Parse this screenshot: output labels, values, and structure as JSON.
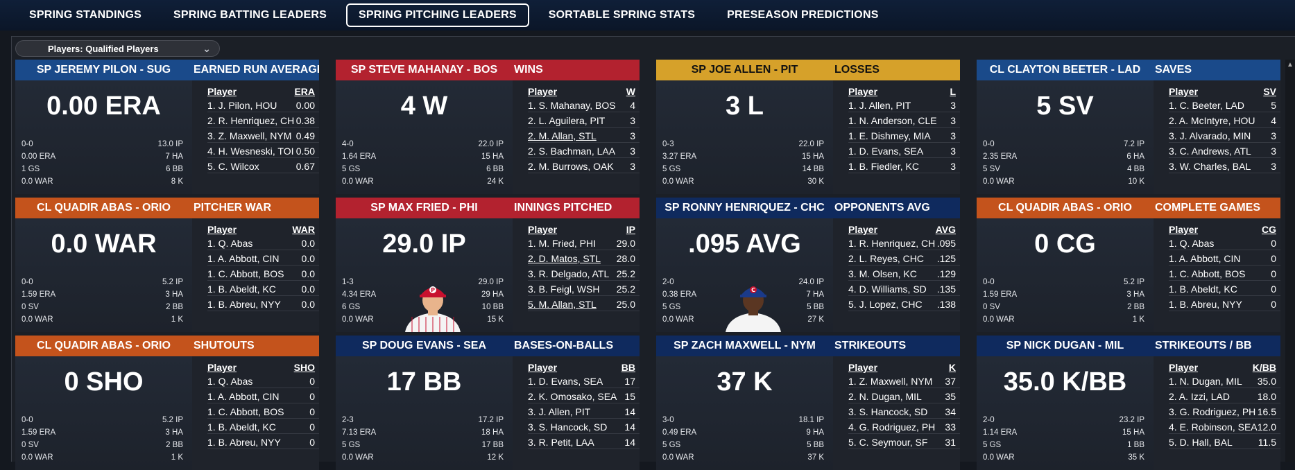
{
  "nav": {
    "tabs": [
      {
        "label": "SPRING STANDINGS",
        "active": false
      },
      {
        "label": "SPRING BATTING LEADERS",
        "active": false
      },
      {
        "label": "SPRING PITCHING LEADERS",
        "active": true
      },
      {
        "label": "SORTABLE SPRING STATS",
        "active": false
      },
      {
        "label": "PRESEASON PREDICTIONS",
        "active": false
      }
    ]
  },
  "filter": {
    "label": "Players: Qualified Players",
    "icon": "chevron-down-icon"
  },
  "colors": {
    "blue": "#1a4a8a",
    "red": "#b3222f",
    "gold": "#d6a12a",
    "orange": "#c4531c",
    "navy": "#0f2a5e"
  },
  "panels": [
    {
      "player": "SP JEREMY PILON - SUG",
      "category": "EARNED RUN AVERAGE",
      "color": "#1a4a8a",
      "big": "0.00 ERA",
      "stats": [
        "0-0",
        "0.00 ERA",
        "1 GS",
        "0.0 WAR"
      ],
      "stats_r": [
        "13.0 IP",
        "7 HA",
        "6 BB",
        "8 K"
      ],
      "col1": "Player",
      "col2": "ERA",
      "rows": [
        [
          "1. J. Pilon, HOU",
          "0.00"
        ],
        [
          "2. R. Henriquez, CH",
          "0.38"
        ],
        [
          "3. Z. Maxwell, NYM",
          "0.49"
        ],
        [
          "4. H. Wesneski, TOI",
          "0.50"
        ],
        [
          "5. C. Wilcox",
          "0.67"
        ]
      ]
    },
    {
      "player": "SP STEVE MAHANAY - BOS",
      "category": "WINS",
      "color": "#b3222f",
      "big": "4 W",
      "stats": [
        "4-0",
        "1.64 ERA",
        "5 GS",
        "0.0 WAR"
      ],
      "stats_r": [
        "22.0 IP",
        "15 HA",
        "6 BB",
        "24 K"
      ],
      "col1": "Player",
      "col2": "W",
      "rows": [
        [
          "1. S. Mahanay, BOS",
          "4"
        ],
        [
          "2. L. Aguilera, PIT",
          "3"
        ],
        [
          "2. M. Allan, STL",
          "3"
        ],
        [
          "2. S. Bachman, LAA",
          "3"
        ],
        [
          "2. M. Burrows, OAK",
          "3"
        ]
      ]
    },
    {
      "player": "SP JOE ALLEN - PIT",
      "category": "LOSSES",
      "color": "#d6a12a",
      "dark": true,
      "big": "3 L",
      "stats": [
        "0-3",
        "3.27 ERA",
        "5 GS",
        "0.0 WAR"
      ],
      "stats_r": [
        "22.0 IP",
        "15 HA",
        "14 BB",
        "30 K"
      ],
      "col1": "Player",
      "col2": "L",
      "rows": [
        [
          "1. J. Allen, PIT",
          "3"
        ],
        [
          "1. N. Anderson, CLE",
          "3"
        ],
        [
          "1. E. Dishmey, MIA",
          "3"
        ],
        [
          "1. D. Evans, SEA",
          "3"
        ],
        [
          "1. B. Fiedler, KC",
          "3"
        ]
      ]
    },
    {
      "player": "CL CLAYTON BEETER - LAD",
      "category": "SAVES",
      "color": "#1a4a8a",
      "big": "5 SV",
      "stats": [
        "0-0",
        "2.35 ERA",
        "5 SV",
        "0.0 WAR"
      ],
      "stats_r": [
        "7.2 IP",
        "6 HA",
        "4 BB",
        "10 K"
      ],
      "col1": "Player",
      "col2": "SV",
      "rows": [
        [
          "1. C. Beeter, LAD",
          "5"
        ],
        [
          "2. A. McIntyre, HOU",
          "4"
        ],
        [
          "3. J. Alvarado, MIN",
          "3"
        ],
        [
          "3. C. Andrews, ATL",
          "3"
        ],
        [
          "3. W. Charles, BAL",
          "3"
        ]
      ]
    },
    {
      "player": "CL QUADIR ABAS - ORIO",
      "category": "PITCHER WAR",
      "color": "#c4531c",
      "big": "0.0 WAR",
      "stats": [
        "0-0",
        "1.59 ERA",
        "0 SV",
        "0.0 WAR"
      ],
      "stats_r": [
        "5.2 IP",
        "3 HA",
        "2 BB",
        "1 K"
      ],
      "col1": "Player",
      "col2": "WAR",
      "rows": [
        [
          "1. Q. Abas",
          "0.0"
        ],
        [
          "1. A. Abbott, CIN",
          "0.0"
        ],
        [
          "1. C. Abbott, BOS",
          "0.0"
        ],
        [
          "1. B. Abeldt, KC",
          "0.0"
        ],
        [
          "1. B. Abreu, NYY",
          "0.0"
        ]
      ]
    },
    {
      "player": "SP MAX FRIED - PHI",
      "category": "INNINGS PITCHED",
      "color": "#b3222f",
      "big": "29.0 IP",
      "photo": "phillies",
      "stats": [
        "1-3",
        "4.34 ERA",
        "6 GS",
        "0.0 WAR"
      ],
      "stats_r": [
        "29.0 IP",
        "29 HA",
        "10 BB",
        "15 K"
      ],
      "col1": "Player",
      "col2": "IP",
      "rows": [
        [
          "1. M. Fried, PHI",
          "29.0"
        ],
        [
          "2. D. Matos, STL",
          "28.0"
        ],
        [
          "3. R. Delgado, ATL",
          "25.2"
        ],
        [
          "3. B. Feigl, WSH",
          "25.2"
        ],
        [
          "5. M. Allan, STL",
          "25.0"
        ]
      ]
    },
    {
      "player": "SP RONNY HENRIQUEZ - CHC",
      "category": "OPPONENTS AVG",
      "color": "#0f2a5e",
      "big": ".095 AVG",
      "photo": "cubs",
      "stats": [
        "2-0",
        "0.38 ERA",
        "5 GS",
        "0.0 WAR"
      ],
      "stats_r": [
        "24.0 IP",
        "7 HA",
        "5 BB",
        "27 K"
      ],
      "col1": "Player",
      "col2": "AVG",
      "rows": [
        [
          "1. R. Henriquez, CH",
          ".095"
        ],
        [
          "2. L. Reyes, CHC",
          ".125"
        ],
        [
          "3. M. Olsen, KC",
          ".129"
        ],
        [
          "4. D. Williams, SD",
          ".135"
        ],
        [
          "5. J. Lopez, CHC",
          ".138"
        ]
      ]
    },
    {
      "player": "CL QUADIR ABAS - ORIO",
      "category": "COMPLETE GAMES",
      "color": "#c4531c",
      "big": "0 CG",
      "stats": [
        "0-0",
        "1.59 ERA",
        "0 SV",
        "0.0 WAR"
      ],
      "stats_r": [
        "5.2 IP",
        "3 HA",
        "2 BB",
        "1 K"
      ],
      "col1": "Player",
      "col2": "CG",
      "rows": [
        [
          "1. Q. Abas",
          "0"
        ],
        [
          "1. A. Abbott, CIN",
          "0"
        ],
        [
          "1. C. Abbott, BOS",
          "0"
        ],
        [
          "1. B. Abeldt, KC",
          "0"
        ],
        [
          "1. B. Abreu, NYY",
          "0"
        ]
      ]
    },
    {
      "player": "CL QUADIR ABAS - ORIO",
      "category": "SHUTOUTS",
      "color": "#c4531c",
      "big": "0 SHO",
      "stats": [
        "0-0",
        "1.59 ERA",
        "0 SV",
        "0.0 WAR"
      ],
      "stats_r": [
        "5.2 IP",
        "3 HA",
        "2 BB",
        "1 K"
      ],
      "col1": "Player",
      "col2": "SHO",
      "rows": [
        [
          "1. Q. Abas",
          "0"
        ],
        [
          "1. A. Abbott, CIN",
          "0"
        ],
        [
          "1. C. Abbott, BOS",
          "0"
        ],
        [
          "1. B. Abeldt, KC",
          "0"
        ],
        [
          "1. B. Abreu, NYY",
          "0"
        ]
      ]
    },
    {
      "player": "SP DOUG EVANS - SEA",
      "category": "BASES-ON-BALLS",
      "color": "#0f2a5e",
      "big": "17 BB",
      "stats": [
        "2-3",
        "7.13 ERA",
        "5 GS",
        "0.0 WAR"
      ],
      "stats_r": [
        "17.2 IP",
        "18 HA",
        "17 BB",
        "12 K"
      ],
      "col1": "Player",
      "col2": "BB",
      "rows": [
        [
          "1. D. Evans, SEA",
          "17"
        ],
        [
          "2. K. Omosako, SEA",
          "15"
        ],
        [
          "3. J. Allen, PIT",
          "14"
        ],
        [
          "3. S. Hancock, SD",
          "14"
        ],
        [
          "3. R. Petit, LAA",
          "14"
        ]
      ]
    },
    {
      "player": "SP ZACH MAXWELL - NYM",
      "category": "STRIKEOUTS",
      "color": "#0f2a5e",
      "big": "37 K",
      "stats": [
        "3-0",
        "0.49 ERA",
        "5 GS",
        "0.0 WAR"
      ],
      "stats_r": [
        "18.1 IP",
        "9 HA",
        "5 BB",
        "37 K"
      ],
      "col1": "Player",
      "col2": "K",
      "rows": [
        [
          "1. Z. Maxwell, NYM",
          "37"
        ],
        [
          "2. N. Dugan, MIL",
          "35"
        ],
        [
          "3. S. Hancock, SD",
          "34"
        ],
        [
          "4. G. Rodriguez, PH",
          "33"
        ],
        [
          "5. C. Seymour, SF",
          "31"
        ]
      ]
    },
    {
      "player": "SP NICK DUGAN - MIL",
      "category": "STRIKEOUTS / BB",
      "color": "#0f2a5e",
      "big": "35.0 K/BB",
      "stats": [
        "2-0",
        "1.14 ERA",
        "5 GS",
        "0.0 WAR"
      ],
      "stats_r": [
        "23.2 IP",
        "15 HA",
        "1 BB",
        "35 K"
      ],
      "col1": "Player",
      "col2": "K/BB",
      "rows": [
        [
          "1. N. Dugan, MIL",
          "35.0"
        ],
        [
          "2. A. Izzi, LAD",
          "18.0"
        ],
        [
          "3. G. Rodriguez, PH",
          "16.5"
        ],
        [
          "4. E. Robinson, SEA",
          "12.0"
        ],
        [
          "5. D. Hall, BAL",
          "11.5"
        ]
      ]
    }
  ]
}
